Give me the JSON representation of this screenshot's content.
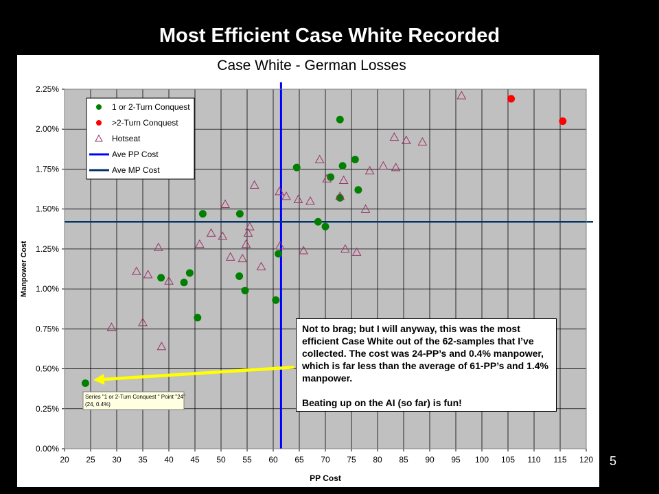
{
  "slide": {
    "title": "Most Efficient Case White Recorded",
    "number": "5"
  },
  "callout": {
    "paragraph1": "Not to brag; but I will anyway, this was the most efficient Case White out of the 62-samples that I’ve collected.  The cost was 24-PP’s and 0.4% manpower, which is far less than the average of 61-PP’s and 1.4% manpower.",
    "paragraph2": "Beating up on the AI (so far) is fun!"
  },
  "chart_data": {
    "type": "scatter",
    "title": "Case White - German Losses",
    "xlabel": "PP Cost",
    "ylabel": "Manpower Cost",
    "xlim": [
      20,
      120
    ],
    "ylim": [
      0,
      2.25
    ],
    "x_ticks": [
      "20",
      "25",
      "30",
      "35",
      "40",
      "45",
      "50",
      "55",
      "60",
      "65",
      "70",
      "75",
      "80",
      "85",
      "90",
      "95",
      "100",
      "105",
      "110",
      "115",
      "120"
    ],
    "y_ticks": [
      "0.00%",
      "0.25%",
      "0.50%",
      "0.75%",
      "1.00%",
      "1.25%",
      "1.50%",
      "1.75%",
      "2.00%",
      "2.25%"
    ],
    "grid": true,
    "legend_position": "top-left",
    "series": [
      {
        "name": "1 or 2-Turn Conquest",
        "marker": "circle",
        "color": "#008000",
        "points": [
          [
            24,
            0.41
          ],
          [
            38.5,
            1.07
          ],
          [
            42.9,
            1.04
          ],
          [
            44,
            1.1
          ],
          [
            45.5,
            0.82
          ],
          [
            46.5,
            1.47
          ],
          [
            53.5,
            1.08
          ],
          [
            53.6,
            1.47
          ],
          [
            54.6,
            0.99
          ],
          [
            60.5,
            0.93
          ],
          [
            61,
            1.22
          ],
          [
            64.5,
            1.76
          ],
          [
            68.6,
            1.42
          ],
          [
            70,
            1.39
          ],
          [
            71,
            1.7
          ],
          [
            72.8,
            2.06
          ],
          [
            72.8,
            1.57
          ],
          [
            73.3,
            1.77
          ],
          [
            75.7,
            1.81
          ],
          [
            76.3,
            1.62
          ]
        ]
      },
      {
        "name": ">2-Turn Conquest",
        "marker": "circle",
        "color": "#ff0000",
        "points": [
          [
            105.6,
            2.19
          ],
          [
            115.5,
            2.05
          ]
        ]
      },
      {
        "name": "Hotseat",
        "marker": "triangle",
        "color": "#993366",
        "points": [
          [
            29,
            0.76
          ],
          [
            33.8,
            1.11
          ],
          [
            35,
            0.79
          ],
          [
            36,
            1.09
          ],
          [
            38,
            1.26
          ],
          [
            38.6,
            0.64
          ],
          [
            40,
            1.05
          ],
          [
            45.9,
            1.28
          ],
          [
            48.1,
            1.35
          ],
          [
            50.3,
            1.33
          ],
          [
            50.8,
            1.53
          ],
          [
            51.8,
            1.2
          ],
          [
            54.1,
            1.19
          ],
          [
            54.8,
            1.28
          ],
          [
            55.2,
            1.35
          ],
          [
            55.5,
            1.39
          ],
          [
            56.4,
            1.65
          ],
          [
            57.7,
            1.14
          ],
          [
            61.2,
            1.61
          ],
          [
            61.3,
            1.27
          ],
          [
            62.5,
            1.58
          ],
          [
            64.8,
            1.56
          ],
          [
            65.8,
            1.24
          ],
          [
            67.1,
            1.55
          ],
          [
            68.9,
            1.81
          ],
          [
            70.3,
            1.69
          ],
          [
            72.8,
            1.58
          ],
          [
            73.5,
            1.68
          ],
          [
            73.8,
            1.25
          ],
          [
            76,
            1.23
          ],
          [
            77.7,
            1.5
          ],
          [
            78.5,
            1.74
          ],
          [
            81.1,
            1.77
          ],
          [
            83.2,
            1.95
          ],
          [
            83.5,
            1.76
          ],
          [
            85.5,
            1.93
          ],
          [
            88.6,
            1.92
          ],
          [
            96.1,
            2.21
          ]
        ]
      }
    ],
    "reference_lines": [
      {
        "name": "Ave PP Cost",
        "orientation": "vertical",
        "value": 61.5,
        "color": "#0000ff"
      },
      {
        "name": "Ave MP Cost",
        "orientation": "horizontal",
        "value": 1.42,
        "color": "#003366"
      }
    ],
    "tooltip": {
      "line1": "Series \"1 or 2-Turn Conquest \" Point \"24\"",
      "line2": "(24, 0.4%)",
      "point": [
        24,
        0.41
      ]
    },
    "annotation_arrow": {
      "color": "#ffff00",
      "from": [
        64,
        0.51
      ],
      "to": [
        25.5,
        0.43
      ]
    }
  }
}
